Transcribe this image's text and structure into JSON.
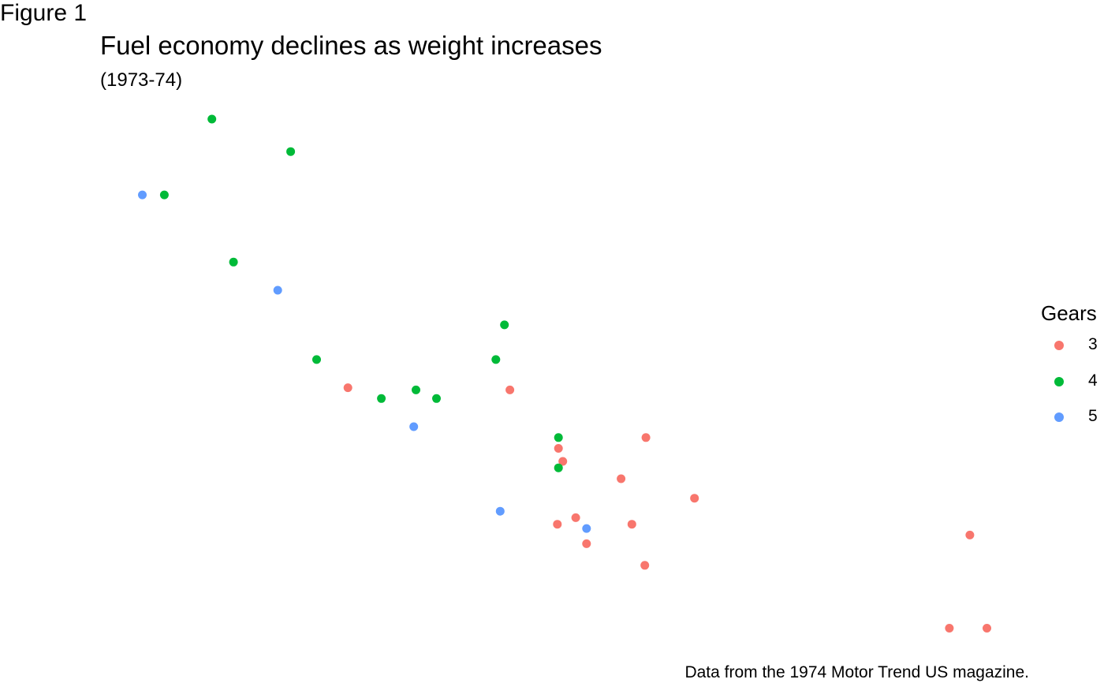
{
  "figure_label": "Figure 1",
  "chart_data": {
    "type": "scatter",
    "title": "Fuel economy declines as weight increases",
    "subtitle": "(1973-74)",
    "caption": "Data from the 1974 Motor Trend US magazine.",
    "legend": {
      "title": "Gears",
      "placement": "right"
    },
    "axes": {
      "visible": false,
      "grid": false
    },
    "xlim": [
      1.5,
      5.5
    ],
    "ylim": [
      10.4,
      33.9
    ],
    "series": [
      {
        "name": "3",
        "color": "#F8766D",
        "points": [
          {
            "x": 3.215,
            "y": 21.4
          },
          {
            "x": 3.44,
            "y": 18.7
          },
          {
            "x": 3.46,
            "y": 18.1
          },
          {
            "x": 3.57,
            "y": 14.3
          },
          {
            "x": 4.07,
            "y": 16.4
          },
          {
            "x": 3.73,
            "y": 17.3
          },
          {
            "x": 3.78,
            "y": 15.2
          },
          {
            "x": 5.25,
            "y": 10.4
          },
          {
            "x": 5.424,
            "y": 10.4
          },
          {
            "x": 5.345,
            "y": 14.7
          },
          {
            "x": 2.465,
            "y": 21.5
          },
          {
            "x": 3.52,
            "y": 15.5
          },
          {
            "x": 3.435,
            "y": 15.2
          },
          {
            "x": 3.84,
            "y": 13.3
          },
          {
            "x": 3.845,
            "y": 19.2
          }
        ]
      },
      {
        "name": "4",
        "color": "#00BA38",
        "points": [
          {
            "x": 2.62,
            "y": 21.0
          },
          {
            "x": 2.875,
            "y": 21.0
          },
          {
            "x": 2.32,
            "y": 22.8
          },
          {
            "x": 3.19,
            "y": 24.4
          },
          {
            "x": 3.15,
            "y": 22.8
          },
          {
            "x": 3.44,
            "y": 19.2
          },
          {
            "x": 3.44,
            "y": 17.8
          },
          {
            "x": 2.2,
            "y": 32.4
          },
          {
            "x": 1.615,
            "y": 30.4
          },
          {
            "x": 1.835,
            "y": 33.9
          },
          {
            "x": 1.935,
            "y": 27.3
          },
          {
            "x": 2.78,
            "y": 21.4
          }
        ]
      },
      {
        "name": "5",
        "color": "#619CFF",
        "points": [
          {
            "x": 2.14,
            "y": 26.0
          },
          {
            "x": 1.513,
            "y": 30.4
          },
          {
            "x": 3.17,
            "y": 15.8
          },
          {
            "x": 2.77,
            "y": 19.7
          },
          {
            "x": 3.57,
            "y": 15.0
          }
        ]
      }
    ]
  }
}
